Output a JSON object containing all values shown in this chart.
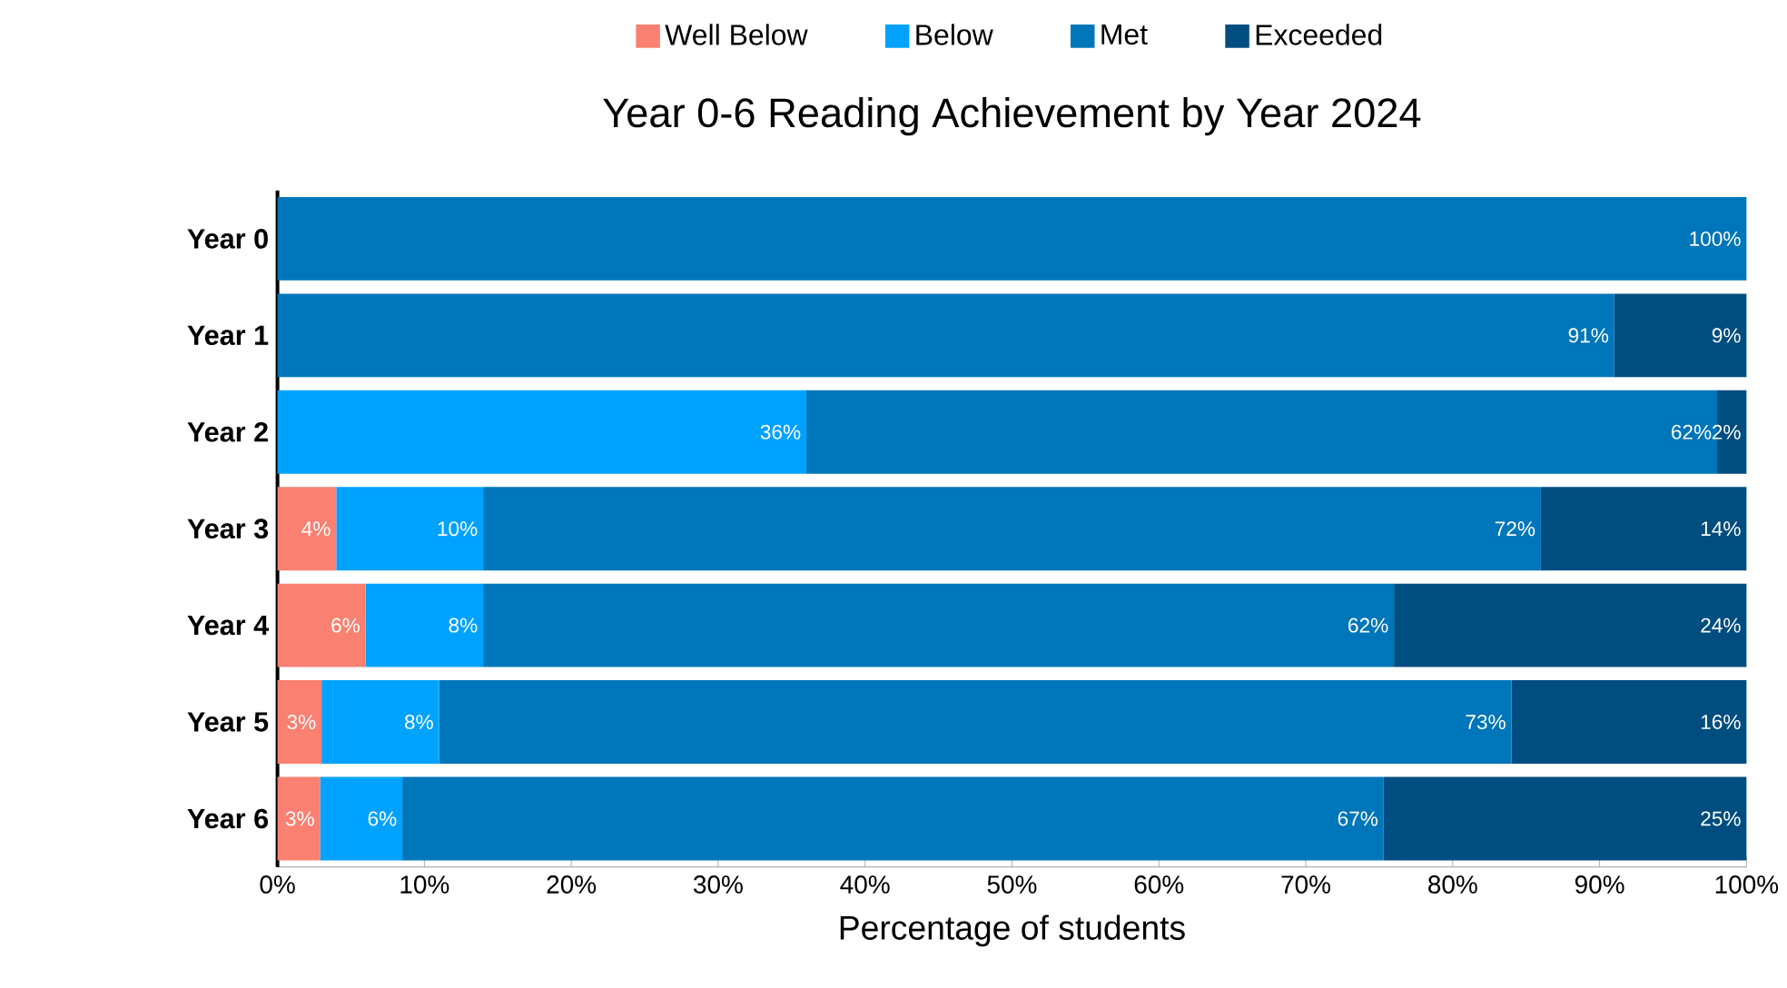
{
  "chart_data": {
    "type": "bar",
    "orientation": "horizontal",
    "stacked": true,
    "title": "Year 0-6 Reading Achievement by Year 2024",
    "xlabel": "Percentage of students",
    "legend": "top",
    "categories": [
      "Year 0",
      "Year 1",
      "Year 2",
      "Year 3",
      "Year 4",
      "Year 5",
      "Year 6"
    ],
    "xlim": [
      0,
      100
    ],
    "xticks": [
      {
        "value": 0,
        "label": "0%"
      },
      {
        "value": 10,
        "label": "10%"
      },
      {
        "value": 20,
        "label": "20%"
      },
      {
        "value": 30,
        "label": "30%"
      },
      {
        "value": 40,
        "label": "40%"
      },
      {
        "value": 50,
        "label": "50%"
      },
      {
        "value": 60,
        "label": "60%"
      },
      {
        "value": 70,
        "label": "70%"
      },
      {
        "value": 80,
        "label": "80%"
      },
      {
        "value": 90,
        "label": "90%"
      },
      {
        "value": 100,
        "label": "100%"
      }
    ],
    "series": [
      {
        "name": "Well Below",
        "color": "#fa8072",
        "values": [
          0,
          0,
          0,
          4,
          6,
          3,
          2.9
        ],
        "value_labels": [
          null,
          null,
          null,
          "4%",
          "6%",
          "3%",
          "3%"
        ]
      },
      {
        "name": "Below",
        "color": "#00a2ff",
        "values": [
          0,
          0,
          36,
          10,
          8,
          8,
          5.6
        ],
        "value_labels": [
          null,
          null,
          "36%",
          "10%",
          "8%",
          "8%",
          "6%"
        ]
      },
      {
        "name": "Met",
        "color": "#0076ba",
        "values": [
          100,
          91,
          62,
          72,
          62,
          73,
          66.8
        ],
        "value_labels": [
          "100%",
          "91%",
          "62%",
          "72%",
          "62%",
          "73%",
          "67%"
        ]
      },
      {
        "name": "Exceeded",
        "color": "#004d80",
        "values": [
          0,
          9,
          2,
          14,
          24,
          16,
          24.7
        ],
        "value_labels": [
          null,
          "9%",
          "2%",
          "14%",
          "24%",
          "16%",
          "25%"
        ]
      }
    ]
  }
}
